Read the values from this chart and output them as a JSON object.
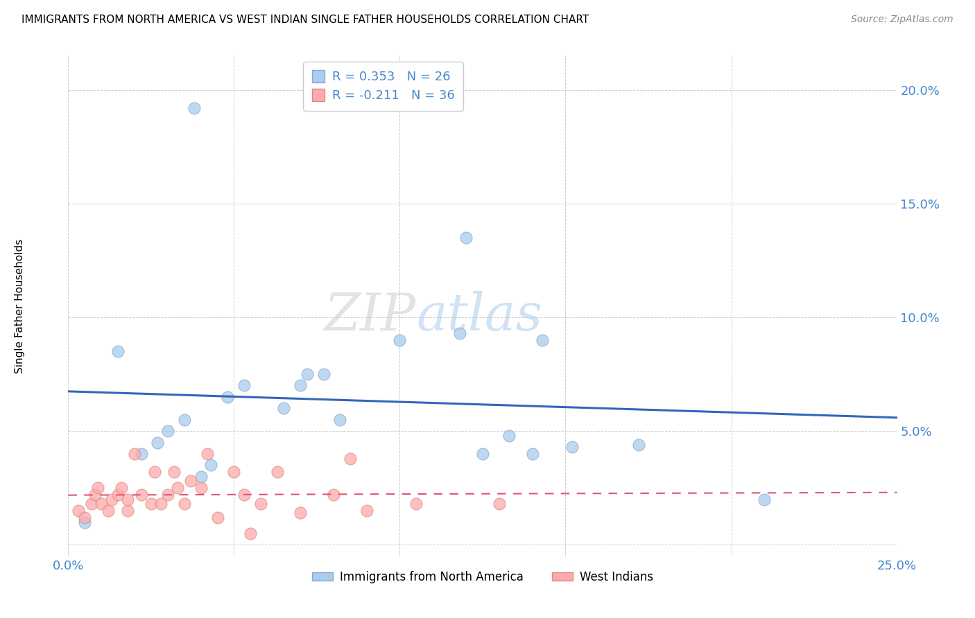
{
  "title": "IMMIGRANTS FROM NORTH AMERICA VS WEST INDIAN SINGLE FATHER HOUSEHOLDS CORRELATION CHART",
  "source": "Source: ZipAtlas.com",
  "ylabel": "Single Father Households",
  "xlim": [
    0.0,
    0.25
  ],
  "ylim": [
    -0.005,
    0.215
  ],
  "blue_R": 0.353,
  "blue_N": 26,
  "pink_R": -0.211,
  "pink_N": 36,
  "blue_label": "Immigrants from North America",
  "pink_label": "West Indians",
  "blue_color": "#aaccee",
  "pink_color": "#ffaaaa",
  "line_blue_color": "#3366bb",
  "line_pink_color": "#dd5577",
  "axis_tick_color": "#4488cc",
  "blue_x": [
    0.038,
    0.005,
    0.015,
    0.022,
    0.027,
    0.03,
    0.035,
    0.04,
    0.043,
    0.048,
    0.053,
    0.065,
    0.07,
    0.072,
    0.077,
    0.082,
    0.1,
    0.118,
    0.12,
    0.125,
    0.133,
    0.14,
    0.143,
    0.152,
    0.172,
    0.21
  ],
  "blue_y": [
    0.192,
    0.01,
    0.085,
    0.04,
    0.045,
    0.05,
    0.055,
    0.03,
    0.035,
    0.065,
    0.07,
    0.06,
    0.07,
    0.075,
    0.075,
    0.055,
    0.09,
    0.093,
    0.135,
    0.04,
    0.048,
    0.04,
    0.09,
    0.043,
    0.044,
    0.02
  ],
  "pink_x": [
    0.003,
    0.005,
    0.007,
    0.008,
    0.009,
    0.01,
    0.012,
    0.013,
    0.015,
    0.016,
    0.018,
    0.018,
    0.02,
    0.022,
    0.025,
    0.026,
    0.028,
    0.03,
    0.032,
    0.033,
    0.035,
    0.037,
    0.04,
    0.042,
    0.045,
    0.05,
    0.053,
    0.055,
    0.058,
    0.063,
    0.07,
    0.08,
    0.085,
    0.09,
    0.105,
    0.13
  ],
  "pink_y": [
    0.015,
    0.012,
    0.018,
    0.022,
    0.025,
    0.018,
    0.015,
    0.02,
    0.022,
    0.025,
    0.015,
    0.02,
    0.04,
    0.022,
    0.018,
    0.032,
    0.018,
    0.022,
    0.032,
    0.025,
    0.018,
    0.028,
    0.025,
    0.04,
    0.012,
    0.032,
    0.022,
    0.005,
    0.018,
    0.032,
    0.014,
    0.022,
    0.038,
    0.015,
    0.018,
    0.018
  ],
  "xtick_positions": [
    0.0,
    0.05,
    0.1,
    0.15,
    0.2,
    0.25
  ],
  "xtick_labels": [
    "0.0%",
    "",
    "",
    "",
    "",
    "25.0%"
  ],
  "ytick_positions": [
    0.0,
    0.05,
    0.1,
    0.15,
    0.2
  ],
  "ytick_labels": [
    "",
    "5.0%",
    "10.0%",
    "15.0%",
    "20.0%"
  ]
}
